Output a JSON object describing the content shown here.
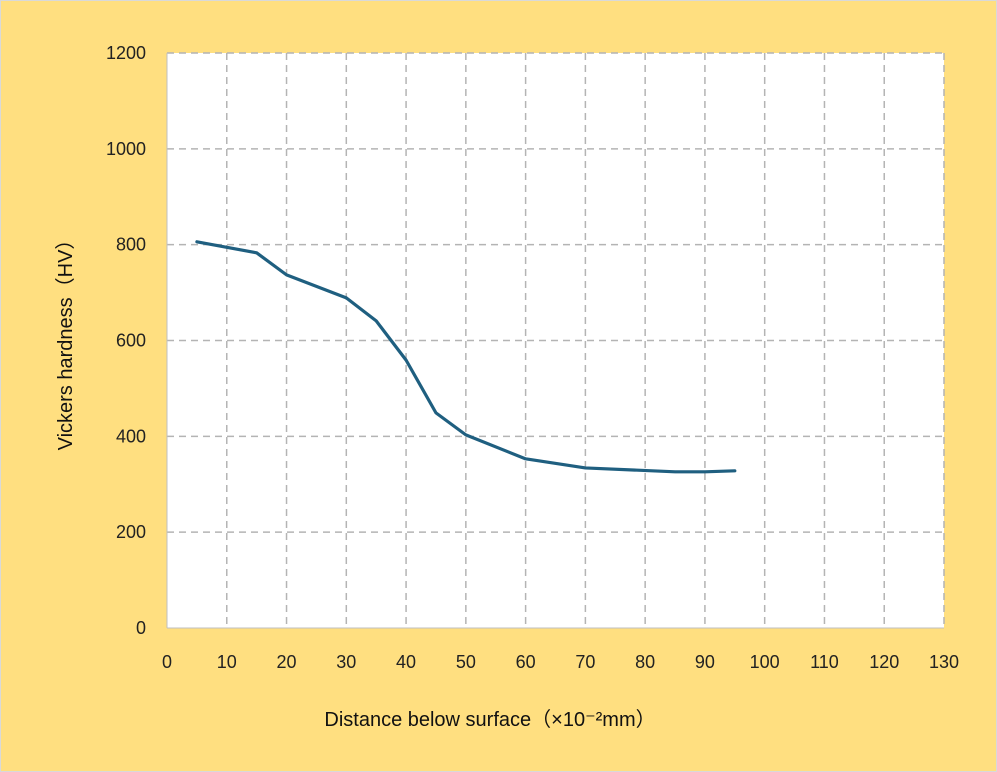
{
  "chart_data": {
    "type": "line",
    "title": "",
    "xlabel": "Distance below surface（×10⁻²mm）",
    "ylabel": "Vickers hardness（HV）",
    "xlim": [
      0,
      130
    ],
    "ylim": [
      0,
      1200
    ],
    "xticks": [
      "0",
      "10",
      "20",
      "30",
      "40",
      "50",
      "60",
      "70",
      "80",
      "90",
      "100",
      "110",
      "120",
      "130"
    ],
    "yticks": [
      "0",
      "200",
      "400",
      "600",
      "800",
      "1000",
      "1200"
    ],
    "grid": true,
    "grid_style": "dashed",
    "legend": "none",
    "series": [
      {
        "x": [
          5,
          15,
          20,
          30,
          35,
          40,
          45,
          50,
          60,
          70,
          85,
          90,
          95
        ],
        "values": [
          806,
          783,
          737,
          689,
          641,
          559,
          449,
          403,
          353,
          334,
          326,
          326,
          328
        ],
        "color": "#1F5F80"
      }
    ],
    "colors": {
      "background": "#FFDF80",
      "plot_area": "#FFFFFF",
      "grid": "#B4B4B4"
    }
  }
}
